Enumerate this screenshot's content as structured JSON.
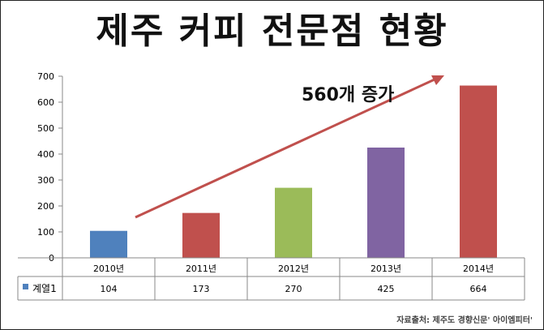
{
  "chart_data": {
    "type": "bar",
    "title": "제주 커피 전문점 현황",
    "categories": [
      "2010년",
      "2011년",
      "2012년",
      "2013년",
      "2014년"
    ],
    "series": [
      {
        "name": "계열1",
        "values": [
          104,
          173,
          270,
          425,
          664
        ]
      }
    ],
    "bar_colors": [
      "#4f81bd",
      "#c0504d",
      "#9bbb59",
      "#8064a2",
      "#c0504d"
    ],
    "yticks": [
      0,
      100,
      200,
      300,
      400,
      500,
      600,
      700
    ],
    "ylim": [
      0,
      700
    ],
    "grid": false,
    "data_table": true,
    "annotation": {
      "text": "560개 증가",
      "arrow_color": "#c0504d"
    },
    "source": "자료출처: 제주도 경향신문' 아이엠피터'"
  }
}
